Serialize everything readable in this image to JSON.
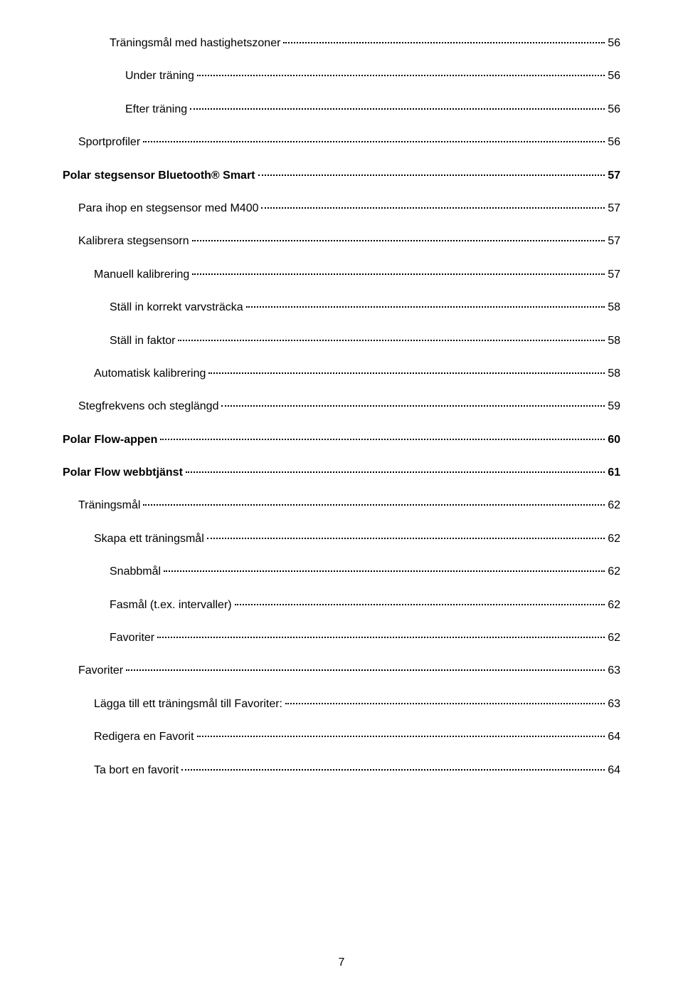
{
  "entries": [
    {
      "label": "Träningsmål med hastighetszoner",
      "page": "56",
      "indent": 3,
      "bold": false
    },
    {
      "label": "Under träning",
      "page": "56",
      "indent": 4,
      "bold": false
    },
    {
      "label": "Efter träning",
      "page": "56",
      "indent": 4,
      "bold": false
    },
    {
      "label": "Sportprofiler",
      "page": "56",
      "indent": 1,
      "bold": false
    },
    {
      "label": "Polar stegsensor Bluetooth® Smart",
      "page": "57",
      "indent": 0,
      "bold": true
    },
    {
      "label": "Para ihop en stegsensor med M400",
      "page": "57",
      "indent": 1,
      "bold": false
    },
    {
      "label": "Kalibrera stegsensorn",
      "page": "57",
      "indent": 1,
      "bold": false
    },
    {
      "label": "Manuell kalibrering",
      "page": "57",
      "indent": 2,
      "bold": false
    },
    {
      "label": "Ställ in korrekt varvsträcka",
      "page": "58",
      "indent": 3,
      "bold": false
    },
    {
      "label": "Ställ in faktor",
      "page": "58",
      "indent": 3,
      "bold": false
    },
    {
      "label": "Automatisk kalibrering",
      "page": "58",
      "indent": 2,
      "bold": false
    },
    {
      "label": "Stegfrekvens och steglängd",
      "page": "59",
      "indent": 1,
      "bold": false
    },
    {
      "label": "Polar Flow-appen",
      "page": "60",
      "indent": 0,
      "bold": true
    },
    {
      "label": "Polar Flow webbtjänst",
      "page": "61",
      "indent": 0,
      "bold": true
    },
    {
      "label": "Träningsmål",
      "page": "62",
      "indent": 1,
      "bold": false
    },
    {
      "label": "Skapa ett träningsmål",
      "page": "62",
      "indent": 2,
      "bold": false
    },
    {
      "label": "Snabbmål",
      "page": "62",
      "indent": 3,
      "bold": false
    },
    {
      "label": "Fasmål (t.ex. intervaller)",
      "page": "62",
      "indent": 3,
      "bold": false
    },
    {
      "label": "Favoriter",
      "page": "62",
      "indent": 3,
      "bold": false
    },
    {
      "label": "Favoriter",
      "page": "63",
      "indent": 1,
      "bold": false
    },
    {
      "label": "Lägga till ett träningsmål till Favoriter:",
      "page": "63",
      "indent": 2,
      "bold": false
    },
    {
      "label": "Redigera en Favorit",
      "page": "64",
      "indent": 2,
      "bold": false
    },
    {
      "label": "Ta bort en favorit",
      "page": "64",
      "indent": 2,
      "bold": false
    }
  ],
  "pageNumber": "7"
}
